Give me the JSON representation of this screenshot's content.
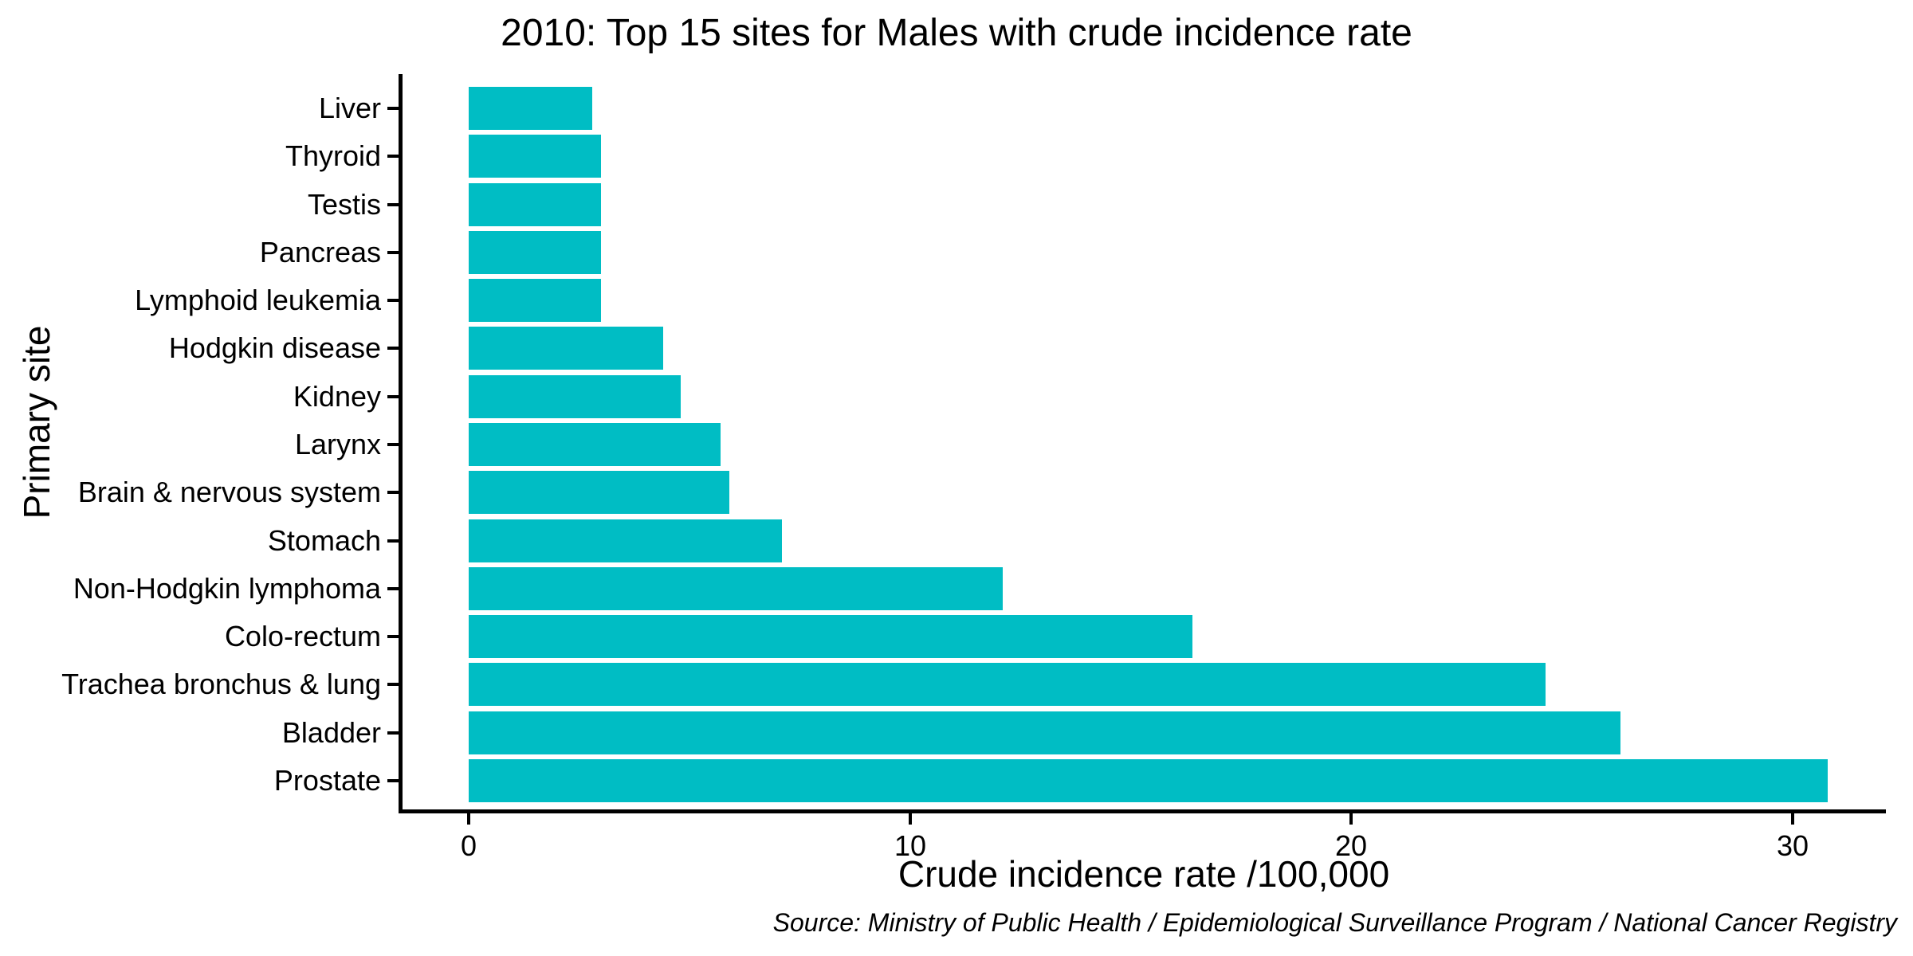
{
  "title": "2010: Top 15 sites for Males with crude incidence rate",
  "source_note": "Source: Ministry of Public Health / Epidemiological Surveillance Program / National Cancer Registry",
  "chart_data": {
    "type": "bar",
    "orientation": "horizontal",
    "title": "2010: Top 15 sites for Males with crude incidence rate",
    "xlabel": "Crude incidence rate /100,000",
    "ylabel": "Primary site",
    "categories": [
      "Liver",
      "Thyroid",
      "Testis",
      "Pancreas",
      "Lymphoid leukemia",
      "Hodgkin disease",
      "Kidney",
      "Larynx",
      "Brain & nervous system",
      "Stomach",
      "Non-Hodgkin lymphoma",
      "Colo-rectum",
      "Trachea bronchus & lung",
      "Bladder",
      "Prostate"
    ],
    "values": [
      2.8,
      3.0,
      3.0,
      3.0,
      3.0,
      4.4,
      4.8,
      5.7,
      5.9,
      7.1,
      12.1,
      16.4,
      24.4,
      26.1,
      30.8
    ],
    "x_ticks": [
      0,
      10,
      20,
      30
    ],
    "xlim": [
      0,
      32
    ],
    "category_order": "top-to-bottom",
    "bar_color": "#00BDC4",
    "axis_color": "#000000",
    "text_color": "#000000",
    "grid": false,
    "legend": false
  }
}
